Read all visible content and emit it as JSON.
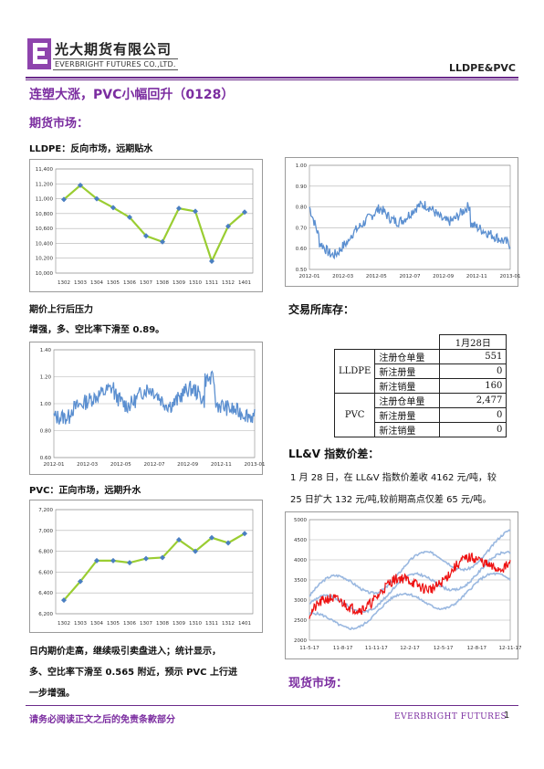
{
  "header": {
    "company_cn": "光大期货有限公司",
    "company_en": "EVERBRIGHT FUTURES CO.,LTD.",
    "section_tag": "LLDPE&PVC",
    "brand_color": "#7b2da0"
  },
  "title": "连塑大涨，PVC小幅回升（0128）",
  "futures": {
    "heading": "期货市场：",
    "lldpe_label": "LLDPE：反向市场，远期贴水",
    "lldpe_note1": "期价上行后压力",
    "lldpe_note2": "增强，多、空比率下滑至 0.89。",
    "pvc_label": "PVC：正向市场，远期升水",
    "pvc_para_1": "日内期价走高，继续吸引卖盘进入；统计显示，",
    "pvc_para_2": "多、空比率下滑至 0.565 附近，预示 PVC 上行进",
    "pvc_para_3": "一步增强。"
  },
  "inventory": {
    "heading": "交易所库存：",
    "date_header": "1月28日",
    "groups": [
      {
        "name": "LLDPE",
        "rows": [
          {
            "label": "注册仓单量",
            "value": "551"
          },
          {
            "label": "新注册量",
            "value": "0"
          },
          {
            "label": "新注销量",
            "value": "160"
          }
        ]
      },
      {
        "name": "PVC",
        "rows": [
          {
            "label": "注册仓单量",
            "value": "2,477"
          },
          {
            "label": "新注册量",
            "value": "0"
          },
          {
            "label": "新注销量",
            "value": "0"
          }
        ]
      }
    ]
  },
  "spread": {
    "heading": "LL&V 指数价差：",
    "para_1": "1 月 28 日，在 LL&V 指数价差收 4162 元/吨，较",
    "para_2": "25 日扩大 132 元/吨,较前期高点仅差 65 元/吨。"
  },
  "spot": {
    "heading": "现货市场："
  },
  "footer": {
    "disclaimer": "请务必阅读正文之后的免责条款部分",
    "brand": "EVERBRIGHT FUTURES",
    "page": "1"
  },
  "chart_data": [
    {
      "type": "line",
      "categories": [
        "1302",
        "1303",
        "1304",
        "1305",
        "1306",
        "1307",
        "1308",
        "1309",
        "1310",
        "1311",
        "1312",
        "1401"
      ],
      "values": [
        10990,
        11180,
        11000,
        10880,
        10750,
        10500,
        10420,
        10870,
        10830,
        10160,
        10630,
        10820
      ],
      "yticks": [
        "11,400",
        "11,200",
        "11,000",
        "10,800",
        "10,600",
        "10,400",
        "10,200",
        "10,000"
      ],
      "ylim": [
        10000,
        11400
      ],
      "line_color": "#9acd32",
      "marker_color": "#4a7fc1"
    },
    {
      "type": "line",
      "x_ticks": [
        "2012-01",
        "2012-03",
        "2012-05",
        "2012-07",
        "2012-09",
        "2012-11",
        "2013-01"
      ],
      "yticks": [
        "1.00",
        "0.90",
        "0.80",
        "0.70",
        "0.60",
        "0.50"
      ],
      "ylim": [
        0.5,
        1.0
      ],
      "line_color": "#5b8fd0"
    },
    {
      "type": "line",
      "x_ticks": [
        "2012-01",
        "2012-03",
        "2012-05",
        "2012-07",
        "2012-09",
        "2012-11",
        "2013-01"
      ],
      "yticks": [
        "1.40",
        "1.20",
        "1.00",
        "0.80",
        "0.60"
      ],
      "ylim": [
        0.6,
        1.4
      ],
      "line_color": "#5b8fd0"
    },
    {
      "type": "line",
      "categories": [
        "1302",
        "1303",
        "1304",
        "1305",
        "1306",
        "1307",
        "1308",
        "1309",
        "1310",
        "1311",
        "1312",
        "1401"
      ],
      "values": [
        6330,
        6510,
        6710,
        6710,
        6690,
        6730,
        6740,
        6910,
        6800,
        6930,
        6880,
        6970
      ],
      "yticks": [
        "7,200",
        "7,000",
        "6,800",
        "6,600",
        "6,400",
        "6,200"
      ],
      "ylim": [
        6200,
        7200
      ],
      "line_color": "#9acd32",
      "marker_color": "#4a7fc1"
    },
    {
      "type": "line",
      "x_ticks": [
        "11-5-17",
        "11-8-17",
        "11-11-17",
        "12-2-17",
        "12-5-17",
        "12-8-17",
        "12-11-17"
      ],
      "yticks": [
        "5000",
        "4500",
        "4000",
        "3500",
        "3000",
        "2500",
        "2000"
      ],
      "ylim": [
        2000,
        5000
      ],
      "series_colors": [
        "#ee1111",
        "#9ab8e0"
      ]
    }
  ]
}
